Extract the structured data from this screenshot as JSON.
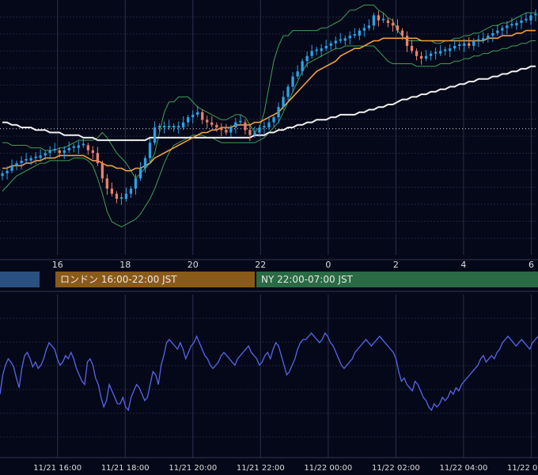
{
  "colors": {
    "background": "#050818",
    "grid": "#1e2440",
    "candle_up": "#2aa3e8",
    "candle_down": "#e8826b",
    "bollinger": "#3f9e5a",
    "ma_mid": "#f0a040",
    "ma_long": "#f0f0f0",
    "oscillator": "#5566ee",
    "tick_text": "#dddddd"
  },
  "sessions": [
    {
      "label": "",
      "color": "#2a5080"
    },
    {
      "label": "ロンドン 16:00-22:00 JST",
      "color": "#8a5a18"
    },
    {
      "label": "NY 22:00-07:00 JST",
      "color": "#2a6a44"
    }
  ],
  "chart_data": [
    {
      "type": "candlestick",
      "title": "",
      "x_tick_labels": [
        "16",
        "18",
        "20",
        "22",
        "0",
        "2",
        "4",
        "6"
      ],
      "x_range": [
        14.3,
        30.2
      ],
      "y_range": [
        0,
        100
      ],
      "reference_line_level": 49.5,
      "grid": true,
      "series": [
        {
          "kind": "price_close",
          "values": [
            32,
            33,
            35,
            36,
            37,
            37,
            38,
            38,
            39,
            40,
            41,
            41,
            40,
            41,
            42,
            42,
            43,
            43,
            41,
            40,
            36,
            30,
            26,
            24,
            22,
            22,
            24,
            26,
            30,
            34,
            38,
            44,
            50,
            50,
            50,
            50,
            50,
            50,
            52,
            54,
            55,
            56,
            53,
            52,
            51,
            50,
            49,
            48,
            50,
            52,
            52,
            49,
            47,
            48,
            50,
            50,
            52,
            54,
            58,
            62,
            66,
            70,
            72,
            76,
            78,
            80,
            80,
            81,
            82,
            83,
            84,
            84,
            85,
            86,
            86,
            88,
            89,
            90,
            94,
            92,
            92,
            91,
            90,
            88,
            86,
            82,
            80,
            78,
            77,
            78,
            79,
            79,
            80,
            80,
            81,
            82,
            82,
            83,
            82,
            84,
            84,
            85,
            86,
            87,
            88,
            89,
            90,
            90,
            91,
            92,
            92,
            94,
            94
          ]
        },
        {
          "kind": "bollinger_upper",
          "values": [
            44,
            44,
            43,
            43,
            43,
            43,
            42,
            42,
            42,
            41,
            41,
            41,
            42,
            42,
            43,
            44,
            45,
            45,
            45,
            45,
            46,
            48,
            46,
            43,
            40,
            38,
            36,
            33,
            30,
            32,
            34,
            36,
            40,
            48,
            56,
            60,
            60,
            62,
            62,
            62,
            60,
            58,
            57,
            56,
            55,
            54,
            53,
            53,
            54,
            55,
            55,
            54,
            51,
            48,
            50,
            56,
            66,
            76,
            82,
            86,
            86,
            88,
            88,
            88,
            88,
            88,
            88,
            89,
            89,
            90,
            91,
            92,
            94,
            96,
            96,
            97,
            98,
            98,
            98,
            96,
            95,
            93,
            92,
            88,
            86,
            84,
            84,
            84,
            84,
            84,
            84,
            83,
            83,
            84,
            84,
            85,
            85,
            86,
            86,
            87,
            87,
            88,
            89,
            90,
            90,
            91,
            91,
            92,
            93,
            94,
            95,
            95,
            95
          ]
        },
        {
          "kind": "bollinger_lower",
          "values": [
            25,
            27,
            29,
            31,
            32,
            33,
            34,
            35,
            36,
            36,
            37,
            37,
            37,
            37,
            37,
            38,
            38,
            38,
            37,
            35,
            30,
            24,
            17,
            13,
            12,
            11,
            12,
            13,
            14,
            16,
            19,
            22,
            26,
            31,
            36,
            40,
            43,
            44,
            45,
            46,
            47,
            47,
            47,
            46,
            46,
            45,
            44,
            44,
            44,
            44,
            44,
            44,
            44,
            44,
            45,
            46,
            48,
            50,
            52,
            56,
            60,
            64,
            68,
            72,
            75,
            76,
            77,
            78,
            79,
            80,
            81,
            81,
            82,
            82,
            82,
            82,
            82,
            82,
            82,
            80,
            78,
            76,
            75,
            75,
            75,
            75,
            75,
            74,
            74,
            74,
            74,
            74,
            75,
            75,
            75,
            76,
            76,
            77,
            77,
            78,
            78,
            79,
            79,
            80,
            80,
            81,
            81,
            82,
            82,
            83,
            83,
            84,
            84
          ]
        },
        {
          "kind": "moving_average",
          "values": [
            34,
            34,
            35,
            35,
            35,
            36,
            36,
            37,
            37,
            38,
            38,
            38,
            39,
            39,
            39,
            39,
            39,
            39,
            38,
            37,
            37,
            36,
            35,
            35,
            34,
            34,
            33,
            33,
            34,
            34,
            35,
            36,
            38,
            39,
            40,
            41,
            42,
            43,
            44,
            45,
            46,
            47,
            48,
            48,
            49,
            49,
            50,
            50,
            50,
            51,
            51,
            51,
            51,
            52,
            52,
            53,
            54,
            55,
            56,
            58,
            60,
            62,
            64,
            66,
            68,
            70,
            72,
            73,
            74,
            75,
            76,
            78,
            79,
            80,
            81,
            81,
            82,
            83,
            84,
            84,
            85,
            85,
            85,
            85,
            85,
            85,
            85,
            85,
            84,
            84,
            84,
            84,
            84,
            84,
            84,
            84,
            84,
            84,
            84,
            84,
            84,
            84,
            85,
            85,
            85,
            86,
            86,
            86,
            87,
            87,
            88,
            88,
            88
          ]
        },
        {
          "kind": "long_moving_average",
          "values": [
            52,
            52,
            51,
            51,
            50,
            50,
            50,
            49,
            49,
            49,
            48,
            48,
            48,
            47,
            47,
            47,
            47,
            46,
            46,
            46,
            45,
            45,
            45,
            45,
            45,
            45,
            45,
            45,
            45,
            45,
            45,
            46,
            46,
            46,
            46,
            46,
            46,
            46,
            46,
            46,
            46,
            46,
            46,
            46,
            46,
            46,
            46,
            46,
            46,
            46,
            46,
            46,
            46,
            47,
            47,
            47,
            48,
            48,
            49,
            49,
            50,
            50,
            51,
            51,
            52,
            52,
            53,
            53,
            53,
            54,
            54,
            55,
            55,
            55,
            55,
            56,
            56,
            57,
            57,
            58,
            58,
            59,
            59,
            60,
            61,
            61,
            62,
            62,
            63,
            63,
            64,
            64,
            65,
            65,
            66,
            66,
            67,
            67,
            68,
            68,
            69,
            69,
            69,
            70,
            70,
            71,
            71,
            72,
            72,
            73,
            73,
            74,
            74
          ]
        }
      ]
    },
    {
      "type": "line",
      "title": "",
      "x_tick_labels": [
        "11/21 16:00",
        "11/21 18:00",
        "11/21 20:00",
        "11/21 22:00",
        "11/22 00:00",
        "11/22 02:00",
        "11/22 04:00",
        "11/22 06:00"
      ],
      "x_range": [
        14.3,
        30.2
      ],
      "y_range": [
        0,
        100
      ],
      "grid": true,
      "series": [
        {
          "name": "",
          "values": [
            38,
            50,
            56,
            60,
            58,
            55,
            48,
            42,
            54,
            62,
            64,
            60,
            55,
            58,
            54,
            56,
            60,
            66,
            70,
            68,
            66,
            60,
            56,
            58,
            62,
            60,
            64,
            60,
            54,
            50,
            46,
            44,
            58,
            60,
            56,
            48,
            44,
            36,
            30,
            34,
            44,
            40,
            36,
            32,
            32,
            36,
            30,
            28,
            36,
            40,
            44,
            42,
            38,
            34,
            36,
            44,
            52,
            50,
            44,
            56,
            62,
            70,
            72,
            70,
            68,
            66,
            70,
            66,
            60,
            64,
            68,
            70,
            74,
            70,
            66,
            62,
            60,
            56,
            54,
            56,
            58,
            62,
            64,
            62,
            60,
            58,
            56,
            60,
            62,
            64,
            66,
            68,
            64,
            62,
            60,
            56,
            58,
            62,
            64,
            60,
            66,
            70,
            68,
            62,
            56,
            50,
            52,
            56,
            60,
            66,
            70,
            72,
            72,
            74,
            76,
            74,
            72,
            70,
            72,
            76,
            74,
            70,
            68,
            64,
            60,
            56,
            54,
            56,
            58,
            60,
            64,
            66,
            68,
            70,
            72,
            70,
            68,
            70,
            72,
            74,
            72,
            70,
            68,
            66,
            64,
            60,
            52,
            46,
            48,
            44,
            42,
            40,
            46,
            44,
            40,
            36,
            34,
            30,
            28,
            32,
            30,
            32,
            36,
            34,
            36,
            40,
            38,
            42,
            40,
            44,
            46,
            48,
            50,
            52,
            54,
            56,
            60,
            62,
            58,
            60,
            62,
            60,
            64,
            66,
            70,
            72,
            74,
            72,
            70,
            68,
            70,
            72,
            70,
            68,
            66,
            70,
            72,
            74
          ]
        }
      ]
    }
  ]
}
